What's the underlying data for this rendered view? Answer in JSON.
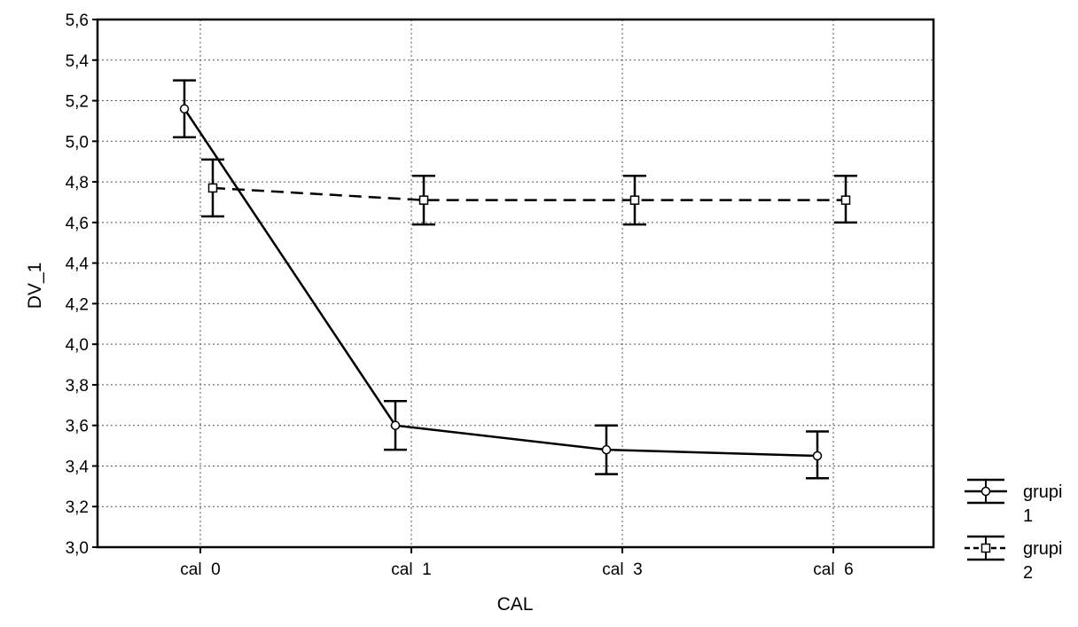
{
  "chart_data": {
    "type": "line",
    "title": "",
    "xlabel": "CAL",
    "ylabel": "DV_1",
    "categories": [
      "cal  0",
      "cal  1",
      "cal  3",
      "cal  6"
    ],
    "ylim": [
      3.0,
      5.6
    ],
    "yticks": [
      "3,0",
      "3,2",
      "3,4",
      "3,6",
      "3,8",
      "4,0",
      "4,2",
      "4,4",
      "4,6",
      "4,8",
      "5,0",
      "5,2",
      "5,4",
      "5,6"
    ],
    "grid": true,
    "error_bars": true,
    "legend_position": "right",
    "series": [
      {
        "name": "grupi 1",
        "legend_lines": [
          "grupi",
          "1"
        ],
        "line_style": "solid",
        "marker": "circle",
        "values": [
          5.16,
          3.6,
          3.48,
          3.45
        ],
        "error_low": [
          5.02,
          3.48,
          3.36,
          3.34
        ],
        "error_high": [
          5.3,
          3.72,
          3.6,
          3.57
        ]
      },
      {
        "name": "grupi 2",
        "legend_lines": [
          "grupi",
          "2"
        ],
        "line_style": "dashed",
        "marker": "square",
        "values": [
          4.77,
          4.71,
          4.71,
          4.71
        ],
        "error_low": [
          4.63,
          4.59,
          4.59,
          4.6
        ],
        "error_high": [
          4.91,
          4.83,
          4.83,
          4.83
        ]
      }
    ]
  }
}
